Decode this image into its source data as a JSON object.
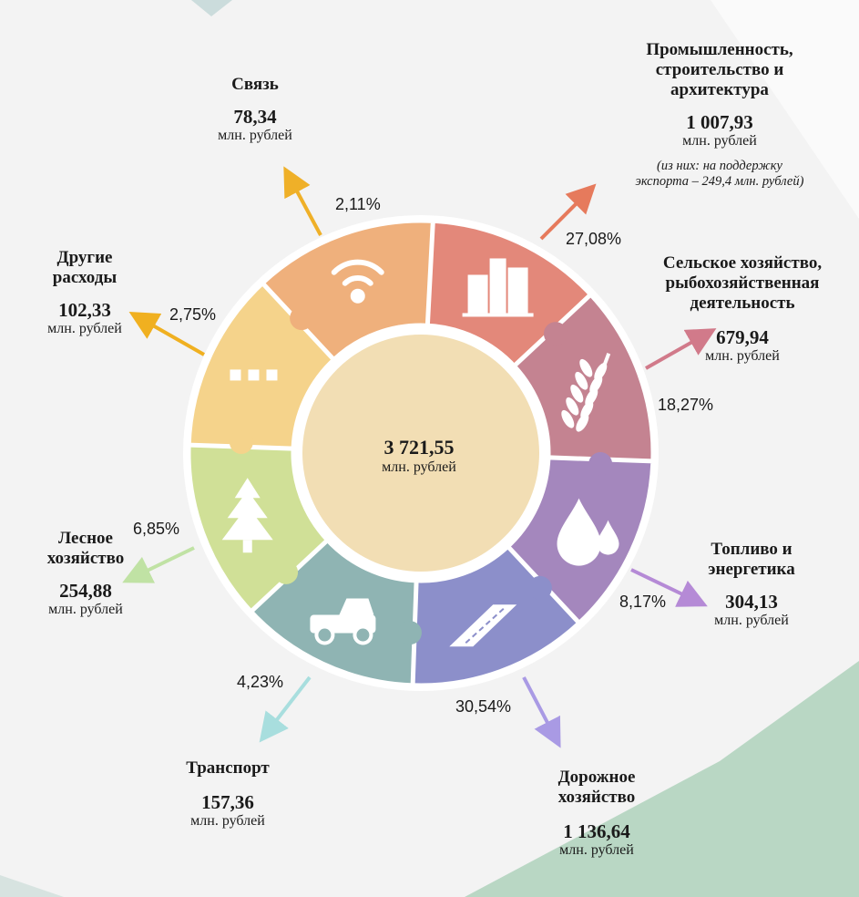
{
  "center": {
    "value": "3 721,55",
    "unit": "млн. рублей"
  },
  "chart_data": {
    "type": "pie",
    "total": 3721.55,
    "unit": "млн. рублей",
    "slices": [
      {
        "key": "prom",
        "name": "Промышленность, строительство и архитектура",
        "lines": [
          "Промышленность,",
          "строительство и",
          "архитектура"
        ],
        "value_label": "1 007,93",
        "value": 1007.93,
        "percent_label": "27,08%",
        "percent": 27.08,
        "note": [
          "(из них: на поддержку",
          "экспорта – 249,4 млн. рублей)"
        ],
        "color": "#e3887a",
        "icon": "buildings-icon"
      },
      {
        "key": "agro",
        "name": "Сельское хозяйство, рыбохозяйственная деятельность",
        "lines": [
          "Сельское хозяйство,",
          "рыбохозяйственная",
          "деятельность"
        ],
        "value_label": "679,94",
        "value": 679.94,
        "percent_label": "18,27%",
        "percent": 18.27,
        "color": "#c48391",
        "icon": "wheat-icon"
      },
      {
        "key": "fuel",
        "name": "Топливо и энергетика",
        "lines": [
          "Топливо и",
          "энергетика"
        ],
        "value_label": "304,13",
        "value": 304.13,
        "percent_label": "8,17%",
        "percent": 8.17,
        "color": "#a487bd",
        "icon": "drops-icon"
      },
      {
        "key": "road",
        "name": "Дорожное хозяйство",
        "lines": [
          "Дорожное",
          "хозяйство"
        ],
        "value_label": "1 136,64",
        "value": 1136.64,
        "percent_label": "30,54%",
        "percent": 30.54,
        "color": "#8c8fca",
        "icon": "road-icon"
      },
      {
        "key": "trans",
        "name": "Транспорт",
        "lines": [
          "Транспорт"
        ],
        "value_label": "157,36",
        "value": 157.36,
        "percent_label": "4,23%",
        "percent": 4.23,
        "color": "#8fb4b3",
        "icon": "truck-icon"
      },
      {
        "key": "forest",
        "name": "Лесное хозяйство",
        "lines": [
          "Лесное",
          "хозяйство"
        ],
        "value_label": "254,88",
        "value": 254.88,
        "percent_label": "6,85%",
        "percent": 6.85,
        "color": "#d0e097",
        "icon": "tree-icon"
      },
      {
        "key": "other",
        "name": "Другие расходы",
        "lines": [
          "Другие",
          "расходы"
        ],
        "value_label": "102,33",
        "value": 102.33,
        "percent_label": "2,75%",
        "percent": 2.75,
        "color": "#f5d38b",
        "icon": "dots-icon"
      },
      {
        "key": "svyaz",
        "name": "Связь",
        "lines": [
          "Связь"
        ],
        "value_label": "78,34",
        "value": 78.34,
        "percent_label": "2,11%",
        "percent": 2.11,
        "color": "#efb07c",
        "icon": "wifi-icon"
      }
    ]
  }
}
